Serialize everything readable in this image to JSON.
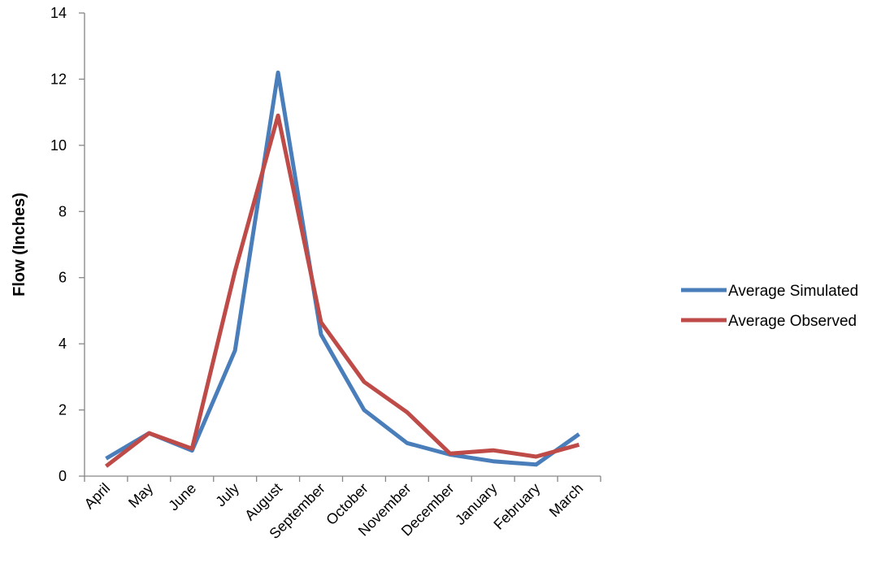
{
  "chart_data": {
    "type": "line",
    "title": "",
    "xlabel": "",
    "ylabel": "Flow (Inches)",
    "ylim": [
      0,
      14
    ],
    "yticks": [
      0,
      2,
      4,
      6,
      8,
      10,
      12,
      14
    ],
    "grid": false,
    "legend_position": "right",
    "categories": [
      "April",
      "May",
      "June",
      "July",
      "August",
      "September",
      "October",
      "November",
      "December",
      "January",
      "February",
      "March"
    ],
    "series": [
      {
        "name": "Average Simulated",
        "color": "#4a7ebb",
        "values": [
          0.53,
          1.3,
          0.77,
          3.8,
          12.2,
          4.28,
          2.0,
          1.0,
          0.65,
          0.45,
          0.35,
          1.27
        ]
      },
      {
        "name": "Average Observed",
        "color": "#be4b48",
        "values": [
          0.3,
          1.3,
          0.83,
          6.2,
          10.9,
          4.65,
          2.85,
          1.93,
          0.68,
          0.78,
          0.59,
          0.95
        ]
      }
    ]
  }
}
